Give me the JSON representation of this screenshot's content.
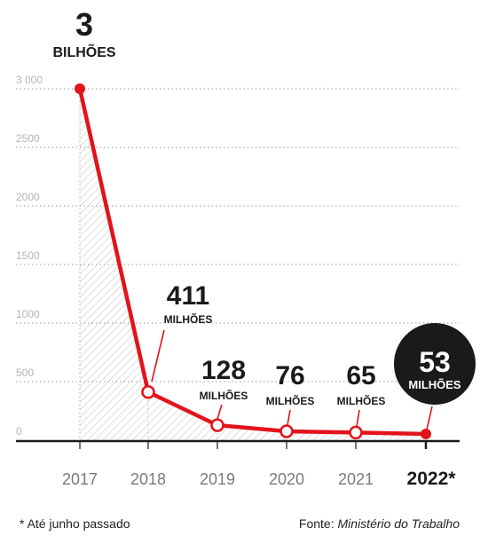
{
  "chart_data": {
    "type": "line",
    "x": [
      "2017",
      "2018",
      "2019",
      "2020",
      "2021",
      "2022*"
    ],
    "values": [
      3000,
      411,
      128,
      76,
      65,
      53
    ],
    "ylim": [
      0,
      3000
    ],
    "yticks": [
      "0",
      "500",
      "1000",
      "1500",
      "2000",
      "2500",
      "3 000"
    ],
    "grid": true,
    "series_color": "#e3131b",
    "labels": [
      {
        "value": "3",
        "unit": "BILHÕES"
      },
      {
        "value": "411",
        "unit": "MILHÕES"
      },
      {
        "value": "128",
        "unit": "MILHÕES"
      },
      {
        "value": "76",
        "unit": "MILHÕES"
      },
      {
        "value": "65",
        "unit": "MILHÕES"
      },
      {
        "value": "53",
        "unit": "MILHÕES"
      }
    ]
  },
  "footnote": "* Até junho passado",
  "source": {
    "prefix": "Fonte: ",
    "name": "Ministério do Trabalho"
  }
}
